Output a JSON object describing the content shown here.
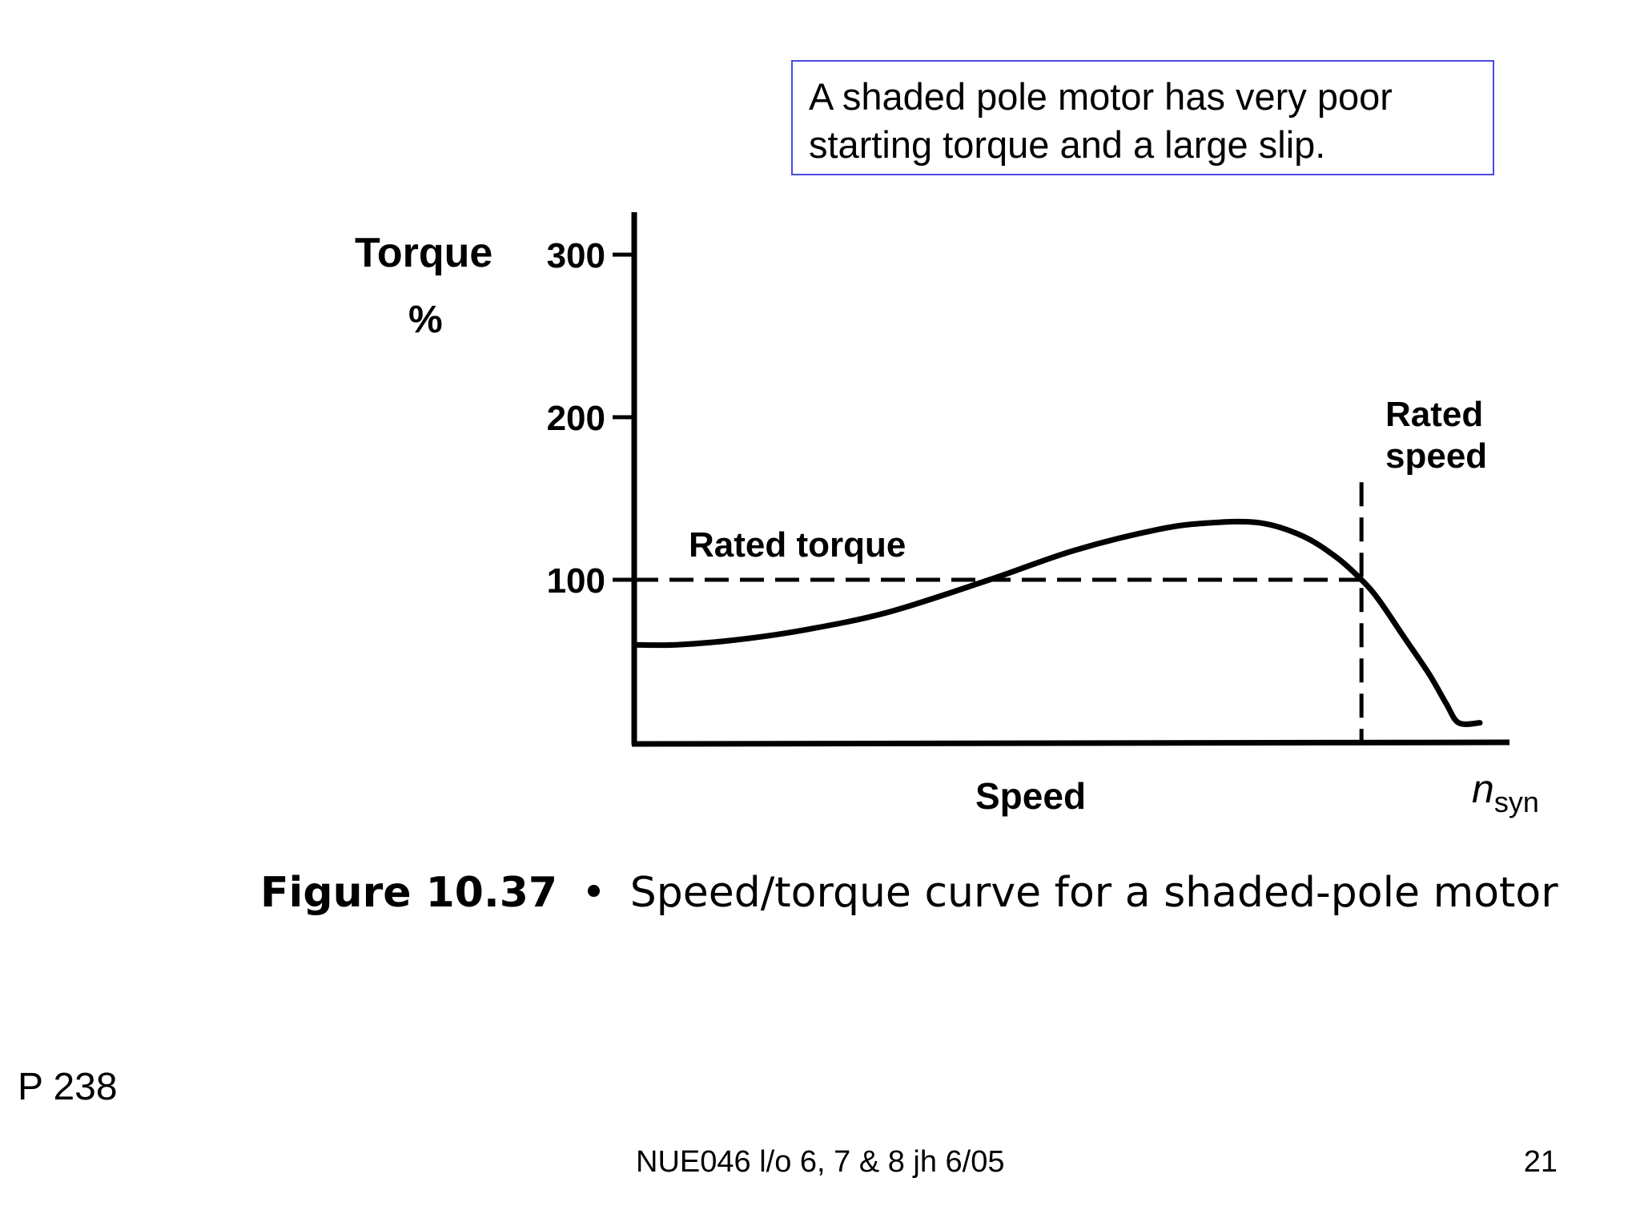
{
  "callout": {
    "line1": "A shaded pole motor has very poor",
    "line2": "starting torque and a large slip."
  },
  "caption": {
    "figure_label": "Figure 10.37",
    "bullet": "•",
    "text": "Speed/torque curve for a shaded-pole motor"
  },
  "page_ref": "P 238",
  "footer": {
    "center": "NUE046 l/o 6, 7 & 8 jh 6/05",
    "page_number": "21"
  },
  "colors": {
    "callout_border": "#4a4adf",
    "ink": "#000000"
  },
  "chart_data": {
    "type": "line",
    "ylabel_line1": "Torque",
    "ylabel_line2": "%",
    "xlabel": "Speed",
    "x_end_label_main": "n",
    "x_end_label_sub": "syn",
    "yticks": [
      100,
      200,
      300
    ],
    "ylim": [
      0,
      330
    ],
    "xlim": [
      0,
      100
    ],
    "series": [
      {
        "x": [
          0,
          5,
          12,
          20,
          30,
          42,
          52,
          62,
          68,
          74,
          79,
          83,
          86,
          88,
          91,
          94,
          96,
          97.5,
          100
        ],
        "y": [
          60,
          60,
          63,
          69,
          80,
          100,
          118,
          131,
          135,
          135,
          127,
          114,
          100,
          88,
          65,
          42,
          24,
          12,
          12
        ]
      }
    ],
    "rated_torque": {
      "label": "Rated torque",
      "y": 100,
      "x_end": 86
    },
    "rated_speed": {
      "label_line1": "Rated",
      "label_line2": "speed",
      "x": 86,
      "y_top": 160
    },
    "grid": false
  }
}
